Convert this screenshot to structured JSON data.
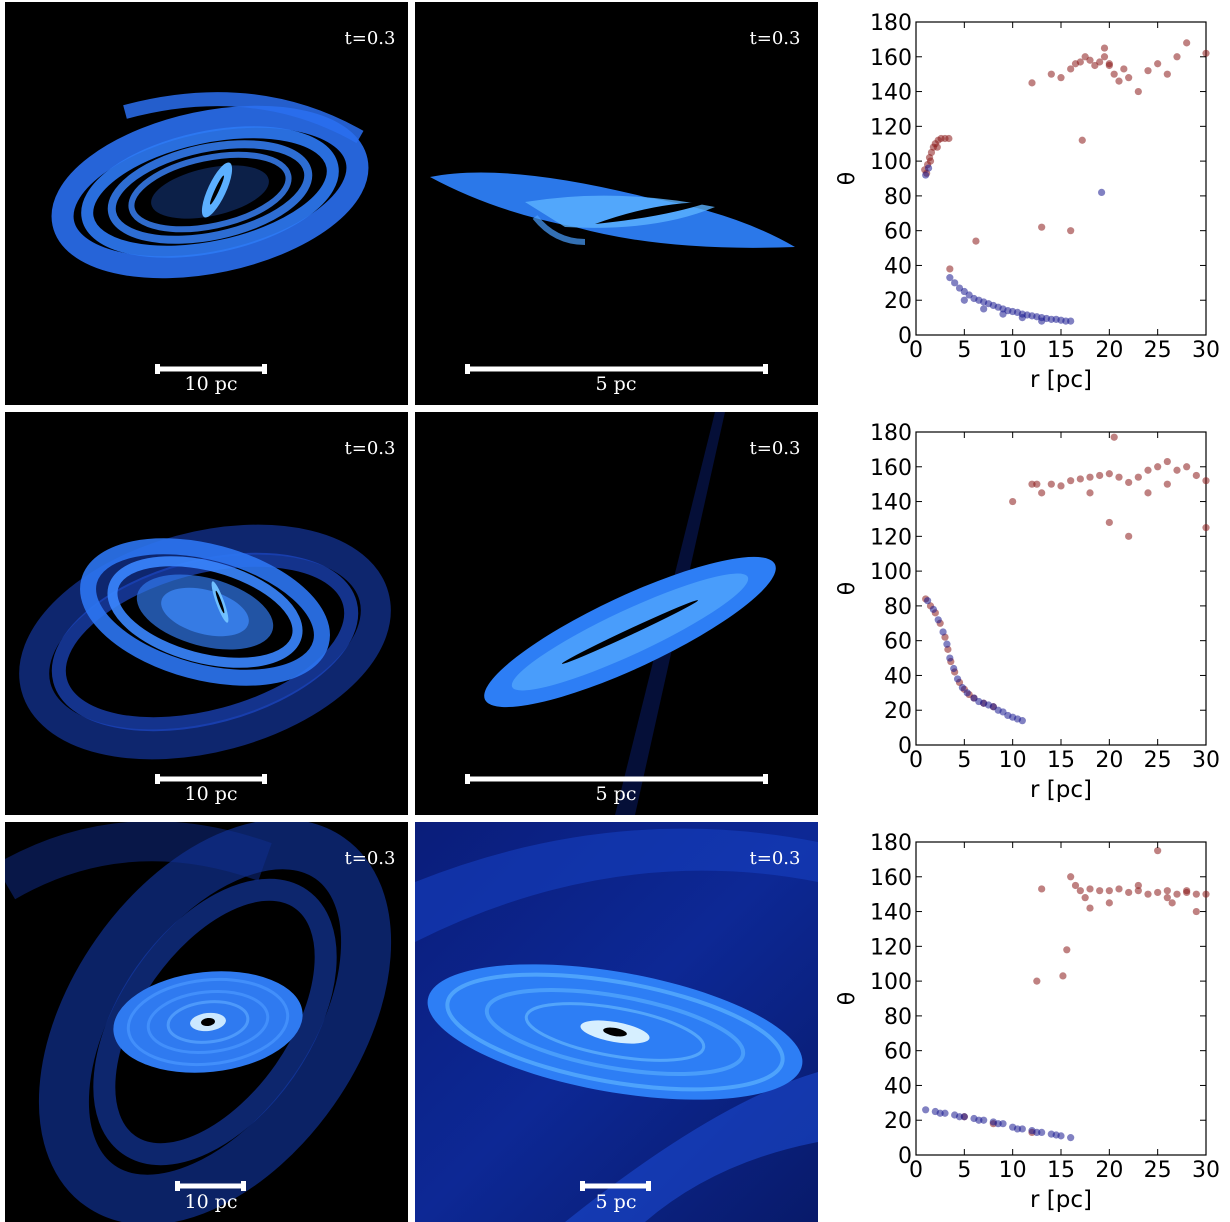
{
  "rows": [
    {
      "time_label": "t=0.3",
      "left_scale": "10 pc",
      "right_scale": "5 pc"
    },
    {
      "time_label": "t=0.3",
      "left_scale": "10 pc",
      "right_scale": "5 pc"
    },
    {
      "time_label": "t=0.3",
      "left_scale": "10 pc",
      "right_scale": "5 pc"
    }
  ],
  "colors": {
    "red_points": "#8b1a1a",
    "blue_points": "#1a1a8f",
    "disk_blue": "#2f7fff",
    "disk_core": "#bfe4ff"
  },
  "chart_data": [
    {
      "type": "scatter",
      "xlabel": "r [pc]",
      "ylabel": "θ",
      "xlim": [
        0,
        30
      ],
      "ylim": [
        0,
        180
      ],
      "xticks": [
        0,
        5,
        10,
        15,
        20,
        25,
        30
      ],
      "yticks": [
        0,
        20,
        40,
        60,
        80,
        100,
        120,
        140,
        160,
        180
      ],
      "series": [
        {
          "color": "#8b1a1a",
          "points": [
            [
              0.9,
              95
            ],
            [
              1.2,
              98
            ],
            [
              1.4,
              102
            ],
            [
              1.6,
              105
            ],
            [
              1.8,
              108
            ],
            [
              2.0,
              110
            ],
            [
              2.3,
              112
            ],
            [
              2.6,
              113
            ],
            [
              3.0,
              113
            ],
            [
              3.4,
              113
            ],
            [
              1.1,
              93
            ],
            [
              1.5,
              100
            ],
            [
              2.2,
              108
            ],
            [
              12,
              145
            ],
            [
              14,
              150
            ],
            [
              15,
              148
            ],
            [
              16,
              153
            ],
            [
              16.5,
              156
            ],
            [
              17,
              157
            ],
            [
              17.5,
              160
            ],
            [
              18,
              158
            ],
            [
              18.5,
              155
            ],
            [
              19,
              157
            ],
            [
              19.5,
              160
            ],
            [
              20,
              156
            ],
            [
              20.5,
              150
            ],
            [
              21,
              146
            ],
            [
              22,
              148
            ],
            [
              23,
              140
            ],
            [
              24,
              152
            ],
            [
              25,
              156
            ],
            [
              26,
              150
            ],
            [
              27,
              160
            ],
            [
              28,
              168
            ],
            [
              30,
              162
            ],
            [
              17.2,
              112
            ],
            [
              20,
              155
            ],
            [
              21.5,
              153
            ],
            [
              13,
              62
            ],
            [
              16,
              60
            ],
            [
              19.5,
              165
            ],
            [
              3.5,
              38
            ],
            [
              6.2,
              54
            ]
          ]
        },
        {
          "color": "#1a1a8f",
          "points": [
            [
              1.0,
              92
            ],
            [
              1.3,
              96
            ],
            [
              3.5,
              33
            ],
            [
              4,
              30
            ],
            [
              4.5,
              27
            ],
            [
              5,
              25
            ],
            [
              5.5,
              23
            ],
            [
              6,
              21
            ],
            [
              6.5,
              20
            ],
            [
              7,
              19
            ],
            [
              7.5,
              18
            ],
            [
              8,
              17
            ],
            [
              8.5,
              16
            ],
            [
              9,
              15
            ],
            [
              9.5,
              14
            ],
            [
              10,
              13.5
            ],
            [
              10.5,
              13
            ],
            [
              11,
              12
            ],
            [
              11.5,
              11.5
            ],
            [
              12,
              11
            ],
            [
              12.5,
              10.5
            ],
            [
              13,
              10
            ],
            [
              13.5,
              9.5
            ],
            [
              14,
              9
            ],
            [
              14.5,
              9
            ],
            [
              15,
              8.5
            ],
            [
              15.5,
              8
            ],
            [
              16,
              8
            ],
            [
              5,
              20
            ],
            [
              7,
              15
            ],
            [
              9,
              12
            ],
            [
              11,
              10
            ],
            [
              13,
              8
            ],
            [
              19.2,
              82
            ]
          ]
        }
      ]
    },
    {
      "type": "scatter",
      "xlabel": "r [pc]",
      "ylabel": "θ",
      "xlim": [
        0,
        30
      ],
      "ylim": [
        0,
        180
      ],
      "xticks": [
        0,
        5,
        10,
        15,
        20,
        25,
        30
      ],
      "yticks": [
        0,
        20,
        40,
        60,
        80,
        100,
        120,
        140,
        160,
        180
      ],
      "series": [
        {
          "color": "#8b1a1a",
          "points": [
            [
              1.0,
              84
            ],
            [
              1.5,
              80
            ],
            [
              2.0,
              76
            ],
            [
              2.5,
              70
            ],
            [
              3.0,
              62
            ],
            [
              3.3,
              55
            ],
            [
              3.6,
              48
            ],
            [
              4.0,
              42
            ],
            [
              4.5,
              36
            ],
            [
              5.0,
              32
            ],
            [
              5.5,
              29
            ],
            [
              6.0,
              27
            ],
            [
              7,
              24
            ],
            [
              8,
              22
            ],
            [
              12,
              150
            ],
            [
              12.5,
              150
            ],
            [
              13,
              145
            ],
            [
              14,
              150
            ],
            [
              15,
              149
            ],
            [
              16,
              152
            ],
            [
              17,
              153
            ],
            [
              18,
              154
            ],
            [
              19,
              155
            ],
            [
              20,
              156
            ],
            [
              21,
              154
            ],
            [
              22,
              151
            ],
            [
              23,
              154
            ],
            [
              24,
              158
            ],
            [
              25,
              160
            ],
            [
              26,
              150
            ],
            [
              27,
              158
            ],
            [
              28,
              160
            ],
            [
              29,
              155
            ],
            [
              30,
              152
            ],
            [
              10,
              140
            ],
            [
              20.5,
              177
            ],
            [
              20,
              128
            ],
            [
              22,
              120
            ],
            [
              30,
              125
            ],
            [
              18,
              145
            ],
            [
              24,
              145
            ],
            [
              26,
              163
            ]
          ]
        },
        {
          "color": "#1a1a8f",
          "points": [
            [
              1.2,
              83
            ],
            [
              1.8,
              78
            ],
            [
              2.3,
              72
            ],
            [
              2.8,
              65
            ],
            [
              3.2,
              58
            ],
            [
              3.5,
              50
            ],
            [
              3.9,
              44
            ],
            [
              4.3,
              38
            ],
            [
              4.8,
              33
            ],
            [
              5.3,
              30
            ],
            [
              6,
              27
            ],
            [
              6.5,
              25
            ],
            [
              7,
              24
            ],
            [
              7.5,
              23
            ],
            [
              8,
              22
            ],
            [
              8.5,
              20
            ],
            [
              9,
              19
            ],
            [
              9.5,
              17
            ],
            [
              10,
              16
            ],
            [
              10.5,
              15
            ],
            [
              11,
              14
            ]
          ]
        }
      ]
    },
    {
      "type": "scatter",
      "xlabel": "r [pc]",
      "ylabel": "θ",
      "xlim": [
        0,
        30
      ],
      "ylim": [
        0,
        180
      ],
      "xticks": [
        0,
        5,
        10,
        15,
        20,
        25,
        30
      ],
      "yticks": [
        0,
        20,
        40,
        60,
        80,
        100,
        120,
        140,
        160,
        180
      ],
      "series": [
        {
          "color": "#8b1a1a",
          "points": [
            [
              13,
              153
            ],
            [
              16,
              160
            ],
            [
              16.5,
              155
            ],
            [
              17,
              152
            ],
            [
              18,
              153
            ],
            [
              19,
              152
            ],
            [
              20,
              152
            ],
            [
              21,
              153
            ],
            [
              22,
              151
            ],
            [
              23,
              152
            ],
            [
              24,
              150
            ],
            [
              25,
              151
            ],
            [
              26,
              152
            ],
            [
              27,
              150
            ],
            [
              28,
              151
            ],
            [
              29,
              150
            ],
            [
              30,
              150
            ],
            [
              17.5,
              148
            ],
            [
              20,
              145
            ],
            [
              23,
              155
            ],
            [
              26,
              148
            ],
            [
              28,
              152
            ],
            [
              12.5,
              100
            ],
            [
              15.2,
              103
            ],
            [
              15.6,
              118
            ],
            [
              25,
              175
            ],
            [
              18,
              142
            ],
            [
              29,
              140
            ],
            [
              26.5,
              145
            ],
            [
              5,
              22
            ],
            [
              8,
              18
            ],
            [
              12,
              13
            ]
          ]
        },
        {
          "color": "#1a1a8f",
          "points": [
            [
              1,
              26
            ],
            [
              2,
              25
            ],
            [
              3,
              24
            ],
            [
              4,
              23
            ],
            [
              5,
              22
            ],
            [
              6,
              21
            ],
            [
              7,
              20
            ],
            [
              8,
              19
            ],
            [
              9,
              18
            ],
            [
              10,
              16
            ],
            [
              11,
              15
            ],
            [
              12,
              14
            ],
            [
              13,
              13
            ],
            [
              14,
              12
            ],
            [
              15,
              11
            ],
            [
              16,
              10
            ],
            [
              2.5,
              24
            ],
            [
              4.5,
              22
            ],
            [
              6.5,
              20
            ],
            [
              8.5,
              18
            ],
            [
              10.5,
              15
            ],
            [
              12.5,
              13
            ],
            [
              14.5,
              11.5
            ]
          ]
        }
      ]
    }
  ]
}
